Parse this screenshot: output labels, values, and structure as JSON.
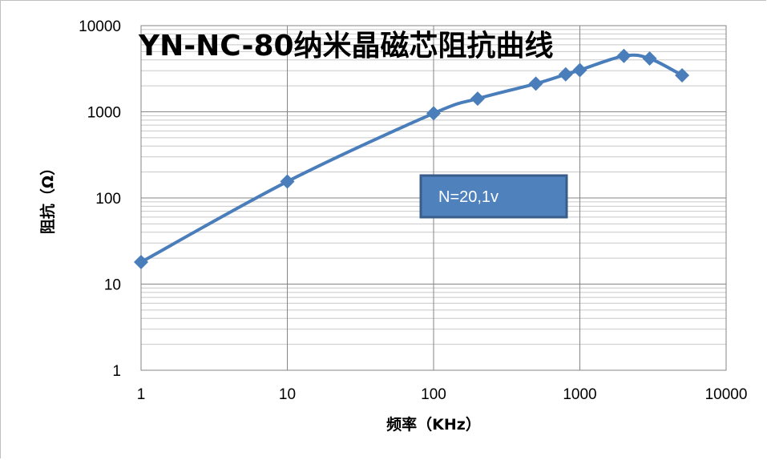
{
  "chart_data": {
    "type": "line",
    "title": "YN-NC-80纳米晶磁芯阻抗曲线",
    "xlabel": "频率（KHz）",
    "ylabel": "阻抗（Ω）",
    "x_scale": "log",
    "y_scale": "log",
    "xlim": [
      1,
      10000
    ],
    "ylim": [
      1,
      10000
    ],
    "x_ticks": [
      "1",
      "10",
      "100",
      "1000",
      "10000"
    ],
    "y_ticks": [
      "1",
      "10",
      "100",
      "1000",
      "10000"
    ],
    "grid": true,
    "legend": "none",
    "series": [
      {
        "color": "#4a7ebb",
        "marker": "diamond",
        "x": [
          1,
          10,
          100,
          200,
          500,
          800,
          1000,
          2000,
          3000,
          5000
        ],
        "y": [
          18,
          155,
          960,
          1420,
          2120,
          2720,
          3050,
          4450,
          4150,
          2650
        ]
      }
    ],
    "annotations": [
      {
        "text": "N=20,1v",
        "background": "#4f81bd",
        "border": "#385d8a"
      }
    ]
  }
}
